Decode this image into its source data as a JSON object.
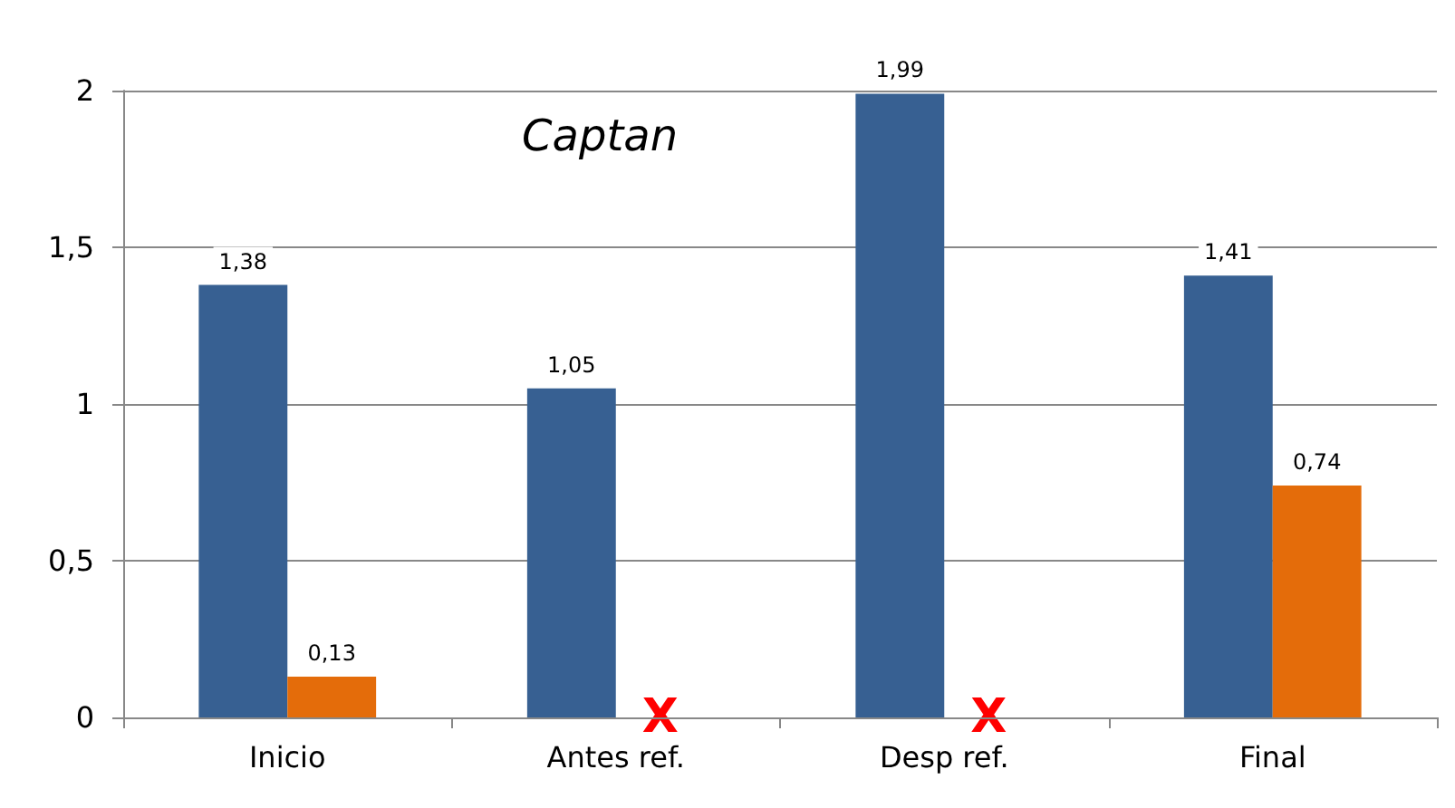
{
  "chart_data": {
    "type": "bar",
    "title": "Captan",
    "categories": [
      "Inicio",
      "Antes ref.",
      "Desp ref.",
      "Final"
    ],
    "series": [
      {
        "color": "#376092",
        "values": [
          1.38,
          1.05,
          1.99,
          1.41
        ],
        "value_labels": [
          "1,38",
          "1,05",
          "1,99",
          "1,41"
        ]
      },
      {
        "color": "#e46c0a",
        "values": [
          0.13,
          null,
          null,
          0.74
        ],
        "value_labels": [
          "0,13",
          null,
          null,
          "0,74"
        ]
      }
    ],
    "ylim": [
      0,
      2
    ],
    "yticks": [
      {
        "value": 0,
        "label": "0"
      },
      {
        "value": 0.5,
        "label": "0,5"
      },
      {
        "value": 1,
        "label": "1"
      },
      {
        "value": 1.5,
        "label": "1,5"
      },
      {
        "value": 2,
        "label": "2"
      }
    ],
    "grid": "y",
    "annotations": [
      {
        "text": "X",
        "x": "Antes ref.",
        "y": 0
      },
      {
        "text": "X",
        "x": "Desp ref.",
        "y": 0
      }
    ]
  }
}
